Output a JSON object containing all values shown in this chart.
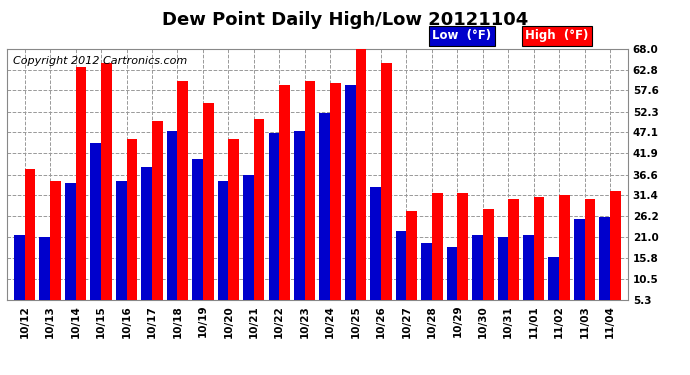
{
  "title": "Dew Point Daily High/Low 20121104",
  "copyright": "Copyright 2012 Cartronics.com",
  "legend_low": "Low  (°F)",
  "legend_high": "High  (°F)",
  "dates": [
    "10/12",
    "10/13",
    "10/14",
    "10/15",
    "10/16",
    "10/17",
    "10/18",
    "10/19",
    "10/20",
    "10/21",
    "10/22",
    "10/23",
    "10/24",
    "10/25",
    "10/26",
    "10/27",
    "10/28",
    "10/29",
    "10/30",
    "10/31",
    "11/01",
    "11/02",
    "11/03",
    "11/04"
  ],
  "low": [
    21.5,
    21.0,
    34.5,
    44.5,
    35.0,
    38.5,
    47.5,
    40.5,
    35.0,
    36.5,
    47.0,
    47.5,
    52.0,
    59.0,
    33.5,
    22.5,
    19.5,
    18.5,
    21.5,
    21.0,
    21.5,
    16.0,
    25.5,
    26.0
  ],
  "high": [
    38.0,
    35.0,
    63.5,
    64.5,
    45.5,
    50.0,
    60.0,
    54.5,
    45.5,
    50.5,
    59.0,
    60.0,
    59.5,
    68.5,
    64.5,
    27.5,
    32.0,
    32.0,
    28.0,
    30.5,
    31.0,
    31.5,
    30.5,
    32.5
  ],
  "ymin": 5.3,
  "ylim": [
    5.3,
    68.0
  ],
  "yticks": [
    5.3,
    10.5,
    15.8,
    21.0,
    26.2,
    31.4,
    36.6,
    41.9,
    47.1,
    52.3,
    57.6,
    62.8,
    68.0
  ],
  "bar_color_low": "#0000cc",
  "bar_color_high": "#ff0000",
  "bg_color": "#ffffff",
  "plot_bg_color": "#ffffff",
  "grid_color": "#999999",
  "title_fontsize": 13,
  "copyright_fontsize": 8,
  "tick_fontsize": 7.5,
  "legend_fontsize": 8.5
}
